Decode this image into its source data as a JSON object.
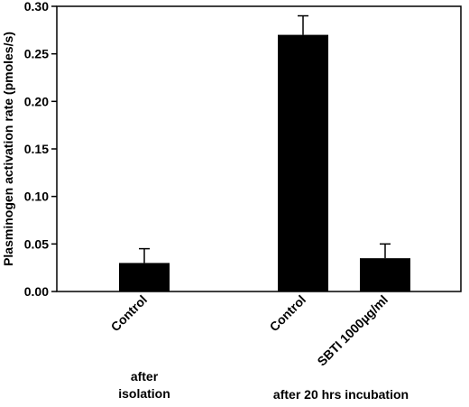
{
  "chart_data": {
    "type": "bar",
    "ylabel": "Plasminogen activation rate (pmoles/s)",
    "ylim": [
      0,
      0.3
    ],
    "yticks": [
      "0.00",
      "0.05",
      "0.10",
      "0.15",
      "0.20",
      "0.25",
      "0.30"
    ],
    "categories": [
      "Control",
      "Control",
      "SBTI 1000µg/ml"
    ],
    "values": [
      0.03,
      0.27,
      0.035
    ],
    "errors": [
      0.015,
      0.02,
      0.015
    ],
    "bar_color": "#000000",
    "groups": [
      {
        "label_lines": [
          "after",
          "isolation"
        ],
        "categories": [
          0
        ]
      },
      {
        "label_lines": [
          "after 20 hrs incubation"
        ],
        "categories": [
          1,
          2
        ]
      }
    ],
    "grid": false
  }
}
